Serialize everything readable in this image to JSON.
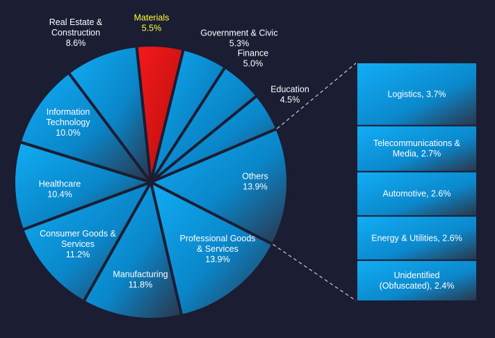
{
  "chart_data": {
    "type": "pie",
    "highlight_color": "#e01010",
    "base_color": "#0d9be8",
    "label_color": "#ffffff",
    "highlight_label_color": "#ffff33",
    "slices": [
      {
        "label": "Materials",
        "value": 5.5,
        "value_text": "5.5%",
        "highlighted": true
      },
      {
        "label": "Government & Civic",
        "value": 5.3,
        "value_text": "5.3%"
      },
      {
        "label": "Finance",
        "value": 5.0,
        "value_text": "5.0%"
      },
      {
        "label": "Education",
        "value": 4.5,
        "value_text": "4.5%"
      },
      {
        "label": "Others",
        "value": 13.9,
        "value_text": "13.9%"
      },
      {
        "label": "Professional Goods & Services",
        "value": 13.9,
        "value_text": "13.9%"
      },
      {
        "label": "Manufacturing",
        "value": 11.8,
        "value_text": "11.8%"
      },
      {
        "label": "Consumer Goods & Services",
        "value": 11.2,
        "value_text": "11.2%"
      },
      {
        "label": "Healthcare",
        "value": 10.4,
        "value_text": "10.4%"
      },
      {
        "label": "Information Technology",
        "value": 10.0,
        "value_text": "10.0%"
      },
      {
        "label": "Real Estate & Construction",
        "value": 8.6,
        "value_text": "8.6%"
      }
    ],
    "breakdown_of": "Others",
    "breakdown": [
      {
        "label": "Logistics, 3.7%",
        "value": 3.7
      },
      {
        "label": "Telecommunications & Media, 2.7%",
        "value": 2.7
      },
      {
        "label": "Automotive, 2.6%",
        "value": 2.6
      },
      {
        "label": "Energy & Utilities, 2.6%",
        "value": 2.6
      },
      {
        "label": "Unidentified (Obfuscated), 2.4%",
        "value": 2.4
      }
    ]
  }
}
